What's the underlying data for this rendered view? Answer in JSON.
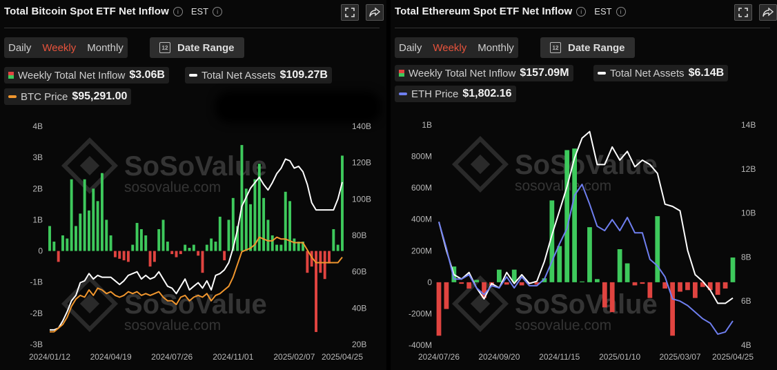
{
  "watermark": {
    "brand": "SoSoValue",
    "url": "sosovalue.com"
  },
  "colors": {
    "inflow": "#3ec95c",
    "outflow": "#e04440",
    "assets": "#ffffff",
    "btc": "#f0962e",
    "eth": "#6f7ff0"
  },
  "btc": {
    "title": "Total Bitcoin Spot ETF Net Inflow",
    "timezone": "EST",
    "icons": [
      "expand-icon",
      "share-icon"
    ],
    "tabs": [
      "Daily",
      "Weekly",
      "Monthly"
    ],
    "active_tab": "Weekly",
    "date_range_label": "Date Range",
    "legend": {
      "inflow_label": "Weekly Total Net Inflow",
      "inflow_value": "$3.06B",
      "assets_label": "Total Net Assets",
      "assets_value": "$109.27B",
      "price_label": "BTC Price",
      "price_value": "$95,291.00"
    }
  },
  "eth": {
    "title": "Total Ethereum Spot ETF Net Inflow",
    "timezone": "EST",
    "icons": [
      "expand-icon",
      "share-icon"
    ],
    "tabs": [
      "Daily",
      "Weekly",
      "Monthly"
    ],
    "active_tab": "Weekly",
    "date_range_label": "Date Range",
    "legend": {
      "inflow_label": "Weekly Total Net Inflow",
      "inflow_value": "$157.09M",
      "assets_label": "Total Net Assets",
      "assets_value": "$6.14B",
      "price_label": "ETH Price",
      "price_value": "$1,802.16"
    }
  },
  "chart_data": [
    {
      "id": "btc",
      "type": "bar",
      "title": "Total Bitcoin Spot ETF Net Inflow",
      "x_tick_labels": [
        "2024/01/12",
        "2024/04/19",
        "2024/07/26",
        "2024/11/01",
        "2025/02/07",
        "2025/04/25"
      ],
      "x_tick_index": [
        0,
        14,
        28,
        42,
        56,
        67
      ],
      "y_left": {
        "label": "Weekly Total Net Inflow (B)",
        "range": [
          -3,
          4
        ],
        "ticks": [
          4,
          3,
          2,
          1,
          0,
          -1,
          -2,
          -3
        ],
        "tick_labels": [
          "4B",
          "3B",
          "2B",
          "1B",
          "0",
          "-1B",
          "-2B",
          "-3B"
        ]
      },
      "y_right": {
        "label": "Total Net Assets",
        "range": [
          20,
          140
        ],
        "ticks": [
          140,
          120,
          100,
          80,
          60,
          40,
          20
        ],
        "tick_labels": [
          "140B",
          "120B",
          "100B",
          "80B",
          "60B",
          "40B",
          "20B"
        ]
      },
      "series": [
        {
          "name": "Weekly Total Net Inflow",
          "kind": "bar",
          "unit": "B",
          "values": [
            0.8,
            0.3,
            -0.35,
            0.5,
            0.4,
            2.3,
            0.8,
            1.2,
            2.3,
            1.3,
            2.0,
            1.6,
            2.5,
            1.0,
            0.5,
            -0.2,
            -0.25,
            -0.3,
            -0.35,
            0.2,
            0.9,
            0.7,
            0.5,
            -0.5,
            -0.35,
            0.7,
            1.0,
            0.3,
            -0.1,
            -0.2,
            -0.1,
            0.2,
            0.1,
            0.2,
            -0.15,
            -0.7,
            0.2,
            0.4,
            0.3,
            1.1,
            -0.3,
            1.0,
            1.7,
            0.8,
            3.4,
            2.0,
            1.5,
            2.3,
            2.8,
            1.7,
            1.0,
            0.5,
            0.2,
            0.2,
            1.9,
            1.6,
            0.4,
            0.3,
            0.3,
            -0.7,
            -0.5,
            -2.6,
            -0.7,
            -0.9,
            -0.4,
            0.7,
            0.2,
            3.06
          ]
        },
        {
          "name": "Total Net Assets",
          "kind": "line",
          "unit": "B",
          "values": [
            28,
            28,
            29,
            33,
            38,
            44,
            47,
            54,
            55,
            59,
            56,
            58,
            57,
            57,
            57,
            55,
            53,
            55,
            58,
            59,
            60,
            56,
            58,
            56,
            57,
            60,
            56,
            52,
            51,
            48,
            52,
            56,
            50,
            52,
            54,
            51,
            55,
            50,
            58,
            59,
            61,
            65,
            73,
            83,
            96,
            101,
            106,
            109,
            112,
            108,
            105,
            109,
            114,
            117,
            122,
            121,
            117,
            118,
            115,
            108,
            98,
            94,
            94,
            94,
            94,
            94,
            100,
            109.27
          ]
        },
        {
          "name": "BTC Price",
          "kind": "line",
          "unit": "B (right axis scale)",
          "values": [
            27,
            27,
            29,
            31,
            35,
            41,
            45,
            47,
            46,
            50,
            47,
            51,
            50,
            48,
            49,
            47,
            46,
            47,
            49,
            48,
            49,
            47,
            48,
            47,
            48,
            49,
            46,
            44,
            44,
            42,
            46,
            47,
            44,
            46,
            47,
            46,
            48,
            44,
            47,
            48,
            50,
            52,
            57,
            64,
            71,
            72,
            73,
            75,
            79,
            78,
            77,
            77,
            79,
            78,
            78,
            77,
            76,
            76,
            76,
            72,
            68,
            65,
            65,
            65,
            65,
            65,
            65,
            68
          ]
        }
      ]
    },
    {
      "id": "eth",
      "type": "bar",
      "title": "Total Ethereum Spot ETF Net Inflow",
      "x_tick_labels": [
        "2024/07/26",
        "2024/09/20",
        "2024/11/15",
        "2025/01/10",
        "2025/03/07",
        "2025/04/25"
      ],
      "x_tick_index": [
        0,
        8,
        16,
        24,
        32,
        39
      ],
      "y_left": {
        "label": "Weekly Total Net Inflow (M)",
        "range": [
          -400,
          1000
        ],
        "ticks": [
          1000,
          800,
          600,
          400,
          200,
          0,
          -200,
          -400
        ],
        "tick_labels": [
          "1B",
          "800M",
          "600M",
          "400M",
          "200M",
          "0",
          "-200M",
          "-400M"
        ]
      },
      "y_right": {
        "label": "Total Net Assets",
        "range": [
          4,
          14
        ],
        "ticks": [
          14,
          12,
          10,
          8,
          6,
          4
        ],
        "tick_labels": [
          "14B",
          "12B",
          "10B",
          "8B",
          "6B",
          "4B"
        ]
      },
      "series": [
        {
          "name": "Weekly Total Net Inflow",
          "kind": "bar",
          "unit": "M",
          "values": [
            -340,
            -170,
            100,
            -10,
            -40,
            15,
            -100,
            -20,
            80,
            -15,
            80,
            -20,
            -10,
            -15,
            25,
            520,
            230,
            840,
            850,
            5,
            350,
            20,
            -160,
            -190,
            210,
            120,
            -20,
            -10,
            -100,
            420,
            -40,
            -340,
            -60,
            -50,
            -100,
            -30,
            -50,
            -80,
            -40,
            157.09
          ]
        },
        {
          "name": "Total Net Assets",
          "kind": "line",
          "unit": "B",
          "values": [
            9.6,
            8.3,
            7.2,
            7.0,
            7.3,
            6.6,
            6.1,
            6.8,
            6.6,
            7.3,
            6.8,
            7.2,
            6.8,
            6.9,
            7.8,
            9.0,
            10.1,
            11.2,
            12.5,
            13.4,
            13.7,
            12.2,
            12.2,
            13.0,
            12.4,
            12.8,
            12.1,
            12.4,
            12.2,
            11.8,
            10.4,
            10.3,
            10.1,
            8.3,
            7.2,
            6.9,
            6.5,
            5.9,
            5.9,
            6.14
          ]
        },
        {
          "name": "ETH Price",
          "kind": "line",
          "unit": "B (right axis scale)",
          "values": [
            9.6,
            8.4,
            7.0,
            7.0,
            7.2,
            6.6,
            6.3,
            6.7,
            6.6,
            7.1,
            6.6,
            7.1,
            6.7,
            6.7,
            7.0,
            7.8,
            8.6,
            9.3,
            10.8,
            11.3,
            10.4,
            9.4,
            9.2,
            9.7,
            9.2,
            9.8,
            9.1,
            9.1,
            7.9,
            7.6,
            7.1,
            6.1,
            6.0,
            5.8,
            5.5,
            5.2,
            5.0,
            4.5,
            4.6,
            5.1
          ]
        }
      ]
    }
  ]
}
